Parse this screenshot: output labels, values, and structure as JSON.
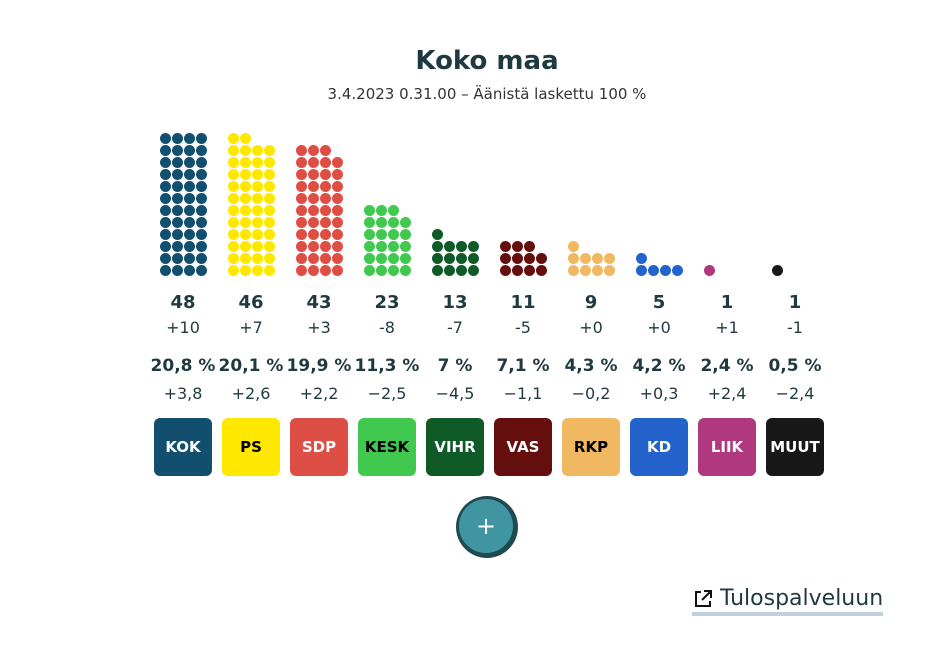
{
  "header": {
    "title": "Koko maa",
    "subtitle": "3.4.2023 0.31.00 – Äänistä laskettu 100 %"
  },
  "chart_data": {
    "type": "waffle",
    "parties": [
      {
        "name": "KOK",
        "seats": 48,
        "seat_change": "+10",
        "pct": "20,8 %",
        "pct_change": "+3,8",
        "color": "#124e6e",
        "text": "#ffffff"
      },
      {
        "name": "PS",
        "seats": 46,
        "seat_change": "+7",
        "pct": "20,1 %",
        "pct_change": "+2,6",
        "color": "#ffe800",
        "text": "#000000"
      },
      {
        "name": "SDP",
        "seats": 43,
        "seat_change": "+3",
        "pct": "19,9 %",
        "pct_change": "+2,2",
        "color": "#dd4f44",
        "text": "#ffffff"
      },
      {
        "name": "KESK",
        "seats": 23,
        "seat_change": "-8",
        "pct": "11,3 %",
        "pct_change": "−2,5",
        "color": "#41c84f",
        "text": "#000000"
      },
      {
        "name": "VIHR",
        "seats": 13,
        "seat_change": "-7",
        "pct": "7 %",
        "pct_change": "−4,5",
        "color": "#0f5a27",
        "text": "#ffffff"
      },
      {
        "name": "VAS",
        "seats": 11,
        "seat_change": "-5",
        "pct": "7,1 %",
        "pct_change": "−1,1",
        "color": "#640e0e",
        "text": "#ffffff"
      },
      {
        "name": "RKP",
        "seats": 9,
        "seat_change": "+0",
        "pct": "4,3 %",
        "pct_change": "−0,2",
        "color": "#f0b860",
        "text": "#000000"
      },
      {
        "name": "KD",
        "seats": 5,
        "seat_change": "+0",
        "pct": "4,2 %",
        "pct_change": "+0,3",
        "color": "#2563cc",
        "text": "#ffffff"
      },
      {
        "name": "LIIK",
        "seats": 1,
        "seat_change": "+1",
        "pct": "2,4 %",
        "pct_change": "+2,4",
        "color": "#b0387e",
        "text": "#ffffff"
      },
      {
        "name": "MUUT",
        "seats": 1,
        "seat_change": "-1",
        "pct": "0,5 %",
        "pct_change": "−2,4",
        "color": "#181818",
        "text": "#ffffff"
      }
    ]
  },
  "controls": {
    "expand_label": "+",
    "link_label": "Tulospalveluun"
  }
}
